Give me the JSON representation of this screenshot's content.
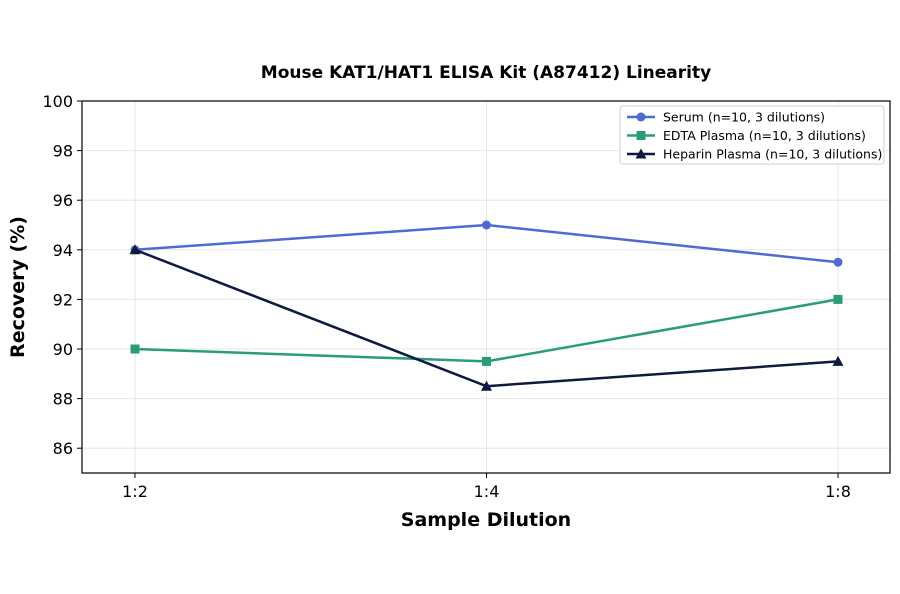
{
  "chart_data": {
    "type": "line",
    "title": "Mouse KAT1/HAT1 ELISA Kit (A87412) Linearity",
    "xlabel": "Sample Dilution",
    "ylabel": "Recovery (%)",
    "categories": [
      "1:2",
      "1:4",
      "1:8"
    ],
    "ylim": [
      85,
      100
    ],
    "yticks": [
      86,
      88,
      90,
      92,
      94,
      96,
      98,
      100
    ],
    "grid": true,
    "legend_position": "top-right",
    "series": [
      {
        "name": "Serum (n=10, 3 dilutions)",
        "values": [
          94,
          95,
          93.5
        ],
        "color": "#4f6bd0",
        "marker": "circle"
      },
      {
        "name": "EDTA Plasma (n=10, 3 dilutions)",
        "values": [
          90,
          89.5,
          92
        ],
        "color": "#2a9d78",
        "marker": "square"
      },
      {
        "name": "Heparin Plasma (n=10, 3 dilutions)",
        "values": [
          94,
          88.5,
          89.5
        ],
        "color": "#0f1a3f",
        "marker": "triangle"
      }
    ]
  }
}
